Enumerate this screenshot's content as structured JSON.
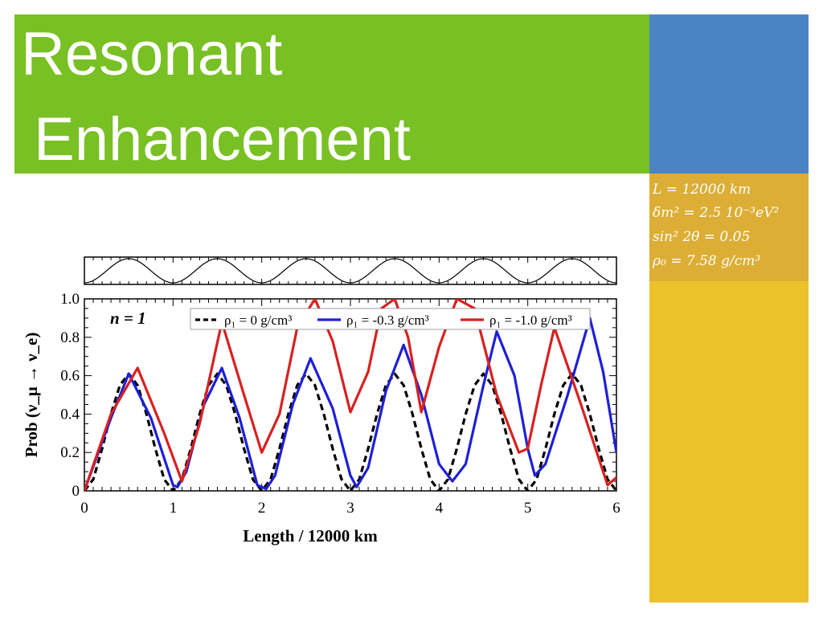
{
  "slide": {
    "title_line1": "Resonant",
    "title_line2": "Enhancement",
    "colors": {
      "green": "#78c023",
      "blue": "#4a84c4",
      "gold": "#dcae35",
      "yellow": "#ecc22b"
    }
  },
  "params": [
    "L = 12000 km",
    "δm² = 2.5 10⁻³eV²",
    "sin² 2θ = 0.05",
    "ρ₀ = 7.58 g/cm³"
  ],
  "chart_data": {
    "type": "line",
    "xlabel": "Length / 12000 km",
    "ylabel": "Prob (ν_μ → ν_e)",
    "xlim": [
      0,
      6
    ],
    "ylim": [
      0,
      1.0
    ],
    "xticks": [
      "0",
      "1",
      "2",
      "3",
      "4",
      "5",
      "6"
    ],
    "yticks": [
      "0",
      "0.2",
      "0.4",
      "0.6",
      "0.8",
      "1.0"
    ],
    "annotation": "n = 1",
    "legend_position": "top",
    "density_profile": {
      "shape": "cosine",
      "periods": 6
    },
    "series": [
      {
        "name": "ρ₁ = 0 g/cm³",
        "color": "#000000",
        "dash": true,
        "x": [
          0,
          0.1,
          0.2,
          0.3,
          0.4,
          0.5,
          0.6,
          0.7,
          0.8,
          0.9,
          1.0,
          1.1,
          1.2,
          1.3,
          1.4,
          1.5,
          1.6,
          1.7,
          1.8,
          1.9,
          2.0,
          2.1,
          2.2,
          2.3,
          2.4,
          2.5,
          2.6,
          2.7,
          2.8,
          2.9,
          3.0,
          3.1,
          3.2,
          3.3,
          3.4,
          3.5,
          3.6,
          3.7,
          3.8,
          3.9,
          4.0,
          4.1,
          4.2,
          4.3,
          4.4,
          4.5,
          4.6,
          4.7,
          4.8,
          4.9,
          5.0,
          5.1,
          5.2,
          5.3,
          5.4,
          5.5,
          5.6,
          5.7,
          5.8,
          5.9,
          6.0
        ],
        "y": [
          0,
          0.06,
          0.22,
          0.4,
          0.55,
          0.61,
          0.55,
          0.4,
          0.22,
          0.06,
          0,
          0.06,
          0.22,
          0.4,
          0.55,
          0.61,
          0.55,
          0.4,
          0.22,
          0.06,
          0,
          0.06,
          0.22,
          0.4,
          0.55,
          0.61,
          0.55,
          0.4,
          0.22,
          0.06,
          0,
          0.06,
          0.22,
          0.4,
          0.55,
          0.61,
          0.55,
          0.4,
          0.22,
          0.06,
          0,
          0.06,
          0.22,
          0.4,
          0.55,
          0.61,
          0.55,
          0.4,
          0.22,
          0.06,
          0,
          0.06,
          0.22,
          0.4,
          0.55,
          0.61,
          0.55,
          0.4,
          0.22,
          0.06,
          0
        ]
      },
      {
        "name": "ρ₁ = -0.3 g/cm³",
        "color": "#1f1fd6",
        "dash": false,
        "x": [
          0,
          0.3,
          0.5,
          0.75,
          1.0,
          1.05,
          1.15,
          1.35,
          1.55,
          1.75,
          1.95,
          2.05,
          2.15,
          2.35,
          2.55,
          2.8,
          3.0,
          3.07,
          3.2,
          3.4,
          3.6,
          3.8,
          4.0,
          4.15,
          4.3,
          4.5,
          4.65,
          4.85,
          5.0,
          5.08,
          5.2,
          5.45,
          5.7,
          5.85,
          6.0
        ],
        "y": [
          0,
          0.38,
          0.61,
          0.38,
          0.03,
          0.02,
          0.1,
          0.45,
          0.64,
          0.38,
          0.03,
          0.01,
          0.08,
          0.45,
          0.69,
          0.43,
          0.08,
          0.02,
          0.12,
          0.52,
          0.76,
          0.5,
          0.14,
          0.05,
          0.14,
          0.55,
          0.83,
          0.6,
          0.22,
          0.08,
          0.14,
          0.5,
          0.9,
          0.62,
          0.2
        ]
      },
      {
        "name": "ρ₁ = -1.0 g/cm³",
        "color": "#d92020",
        "dash": false,
        "x": [
          0,
          0.3,
          0.6,
          0.9,
          1.1,
          1.3,
          1.55,
          1.8,
          2.0,
          2.2,
          2.4,
          2.6,
          2.8,
          3.0,
          3.2,
          3.35,
          3.5,
          3.65,
          3.8,
          4.0,
          4.2,
          4.4,
          4.65,
          4.9,
          5.0,
          5.15,
          5.3,
          5.6,
          5.9,
          6.0
        ],
        "y": [
          0,
          0.4,
          0.64,
          0.3,
          0.05,
          0.35,
          0.88,
          0.5,
          0.2,
          0.4,
          0.85,
          1.0,
          0.78,
          0.41,
          0.62,
          0.95,
          1.0,
          0.8,
          0.41,
          0.75,
          1.0,
          0.95,
          0.5,
          0.2,
          0.22,
          0.55,
          0.85,
          0.45,
          0.03,
          0.07
        ]
      }
    ]
  }
}
